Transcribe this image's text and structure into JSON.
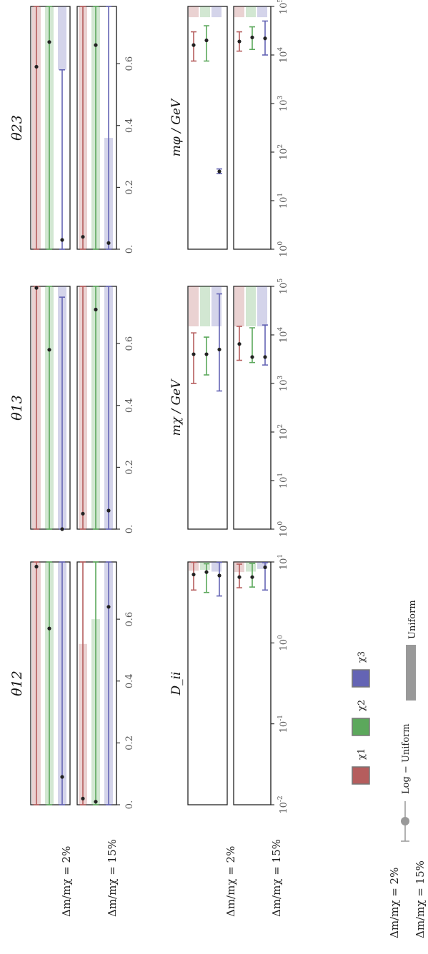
{
  "labels": {
    "row_2pct": "Δm/mχ = 2%",
    "row_15pct": "Δm/mχ = 15%"
  },
  "legend": {
    "entries": [
      {
        "name": "χ1",
        "color": "#b55d5d"
      },
      {
        "name": "χ2",
        "color": "#5ca85c"
      },
      {
        "name": "χ3",
        "color": "#6464b4"
      }
    ],
    "log_uniform_label": "Log − Uniform",
    "uniform_label": "Uniform"
  },
  "colors": {
    "chi1": "#b55d5d",
    "chi2": "#5ca85c",
    "chi3": "#6464b4",
    "point": "#222222"
  },
  "chart_data": [
    {
      "type": "scatter",
      "title": "θ12",
      "xlim": [
        0,
        0.785
      ],
      "x_ticks": [
        "0.",
        "0.2",
        "0.4",
        "0.6"
      ],
      "x_tick_values": [
        0,
        0.2,
        0.4,
        0.6
      ],
      "rows": [
        {
          "label": "Δm/mχ = 2%",
          "series": [
            {
              "name": "χ1",
              "value": 0.77,
              "uniform": [
                0,
                0.785
              ],
              "interval": [
                0,
                0.785
              ]
            },
            {
              "name": "χ2",
              "value": 0.57,
              "uniform": [
                0,
                0.785
              ],
              "interval": [
                0,
                0.785
              ]
            },
            {
              "name": "χ3",
              "value": 0.09,
              "uniform": [
                0,
                0.785
              ],
              "interval": [
                0,
                0.785
              ]
            }
          ]
        },
        {
          "label": "Δm/mχ = 15%",
          "series": [
            {
              "name": "χ1",
              "value": 0.02,
              "uniform": [
                0,
                0.52
              ],
              "interval": [
                0,
                0.785
              ]
            },
            {
              "name": "χ2",
              "value": 0.01,
              "uniform": [
                0,
                0.6
              ],
              "interval": [
                0,
                0.785
              ]
            },
            {
              "name": "χ3",
              "value": 0.64,
              "uniform": [
                0,
                0.785
              ],
              "interval": [
                0,
                0.785
              ]
            }
          ]
        }
      ]
    },
    {
      "type": "scatter",
      "title": "θ13",
      "xlim": [
        0,
        0.785
      ],
      "x_ticks": [
        "0.",
        "0.2",
        "0.4",
        "0.6"
      ],
      "x_tick_values": [
        0,
        0.2,
        0.4,
        0.6
      ],
      "rows": [
        {
          "label": "Δm/mχ = 2%",
          "series": [
            {
              "name": "χ1",
              "value": 0.78,
              "uniform": [
                0,
                0.785
              ],
              "interval": [
                0,
                0.785
              ]
            },
            {
              "name": "χ2",
              "value": 0.58,
              "uniform": [
                0,
                0.785
              ],
              "interval": [
                0,
                0.785
              ]
            },
            {
              "name": "χ3",
              "value": 0.0,
              "uniform": [
                0,
                0.785
              ],
              "interval": [
                0,
                0.75
              ]
            }
          ]
        },
        {
          "label": "Δm/mχ = 15%",
          "series": [
            {
              "name": "χ1",
              "value": 0.05,
              "uniform": [
                0,
                0.785
              ],
              "interval": [
                0,
                0.785
              ]
            },
            {
              "name": "χ2",
              "value": 0.71,
              "uniform": [
                0,
                0.785
              ],
              "interval": [
                0,
                0.785
              ]
            },
            {
              "name": "χ3",
              "value": 0.06,
              "uniform": [
                0,
                0.785
              ],
              "interval": [
                0,
                0.785
              ]
            }
          ]
        }
      ]
    },
    {
      "type": "scatter",
      "title": "θ23",
      "xlim": [
        0,
        0.785
      ],
      "x_ticks": [
        "0.",
        "0.2",
        "0.4",
        "0.6"
      ],
      "x_tick_values": [
        0,
        0.2,
        0.4,
        0.6
      ],
      "rows": [
        {
          "label": "Δm/mχ = 2%",
          "series": [
            {
              "name": "χ1",
              "value": 0.59,
              "uniform": [
                0,
                0.785
              ],
              "interval": [
                0,
                0.785
              ]
            },
            {
              "name": "χ2",
              "value": 0.67,
              "uniform": [
                0,
                0.785
              ],
              "interval": [
                0,
                0.785
              ]
            },
            {
              "name": "χ3",
              "value": 0.03,
              "uniform": [
                0.58,
                0.785
              ],
              "interval": [
                0,
                0.58
              ]
            }
          ]
        },
        {
          "label": "Δm/mχ = 15%",
          "series": [
            {
              "name": "χ1",
              "value": 0.04,
              "uniform": [
                0,
                0.785
              ],
              "interval": [
                0,
                0.785
              ]
            },
            {
              "name": "χ2",
              "value": 0.66,
              "uniform": [
                0,
                0.785
              ],
              "interval": [
                0,
                0.785
              ]
            },
            {
              "name": "χ3",
              "value": 0.02,
              "uniform": [
                0,
                0.36
              ],
              "interval": [
                0,
                0.785
              ]
            }
          ]
        }
      ]
    },
    {
      "type": "scatter",
      "title": "D_ii",
      "xscale": "log",
      "xlim": [
        0.01,
        10
      ],
      "x_ticks": [
        "10^-2",
        "10^-1",
        "10^0",
        "10^1"
      ],
      "x_tick_values": [
        0.01,
        0.1,
        1,
        10
      ],
      "rows": [
        {
          "label": "Δm/mχ = 2%",
          "series": [
            {
              "name": "χ1",
              "value": 7.0,
              "uniform": [
                7.8,
                10
              ],
              "interval": [
                4.5,
                9.9
              ]
            },
            {
              "name": "χ2",
              "value": 7.5,
              "uniform": [
                8.0,
                10
              ],
              "interval": [
                4.2,
                9.5
              ]
            },
            {
              "name": "χ3",
              "value": 6.8,
              "uniform": [
                7.6,
                10
              ],
              "interval": [
                3.8,
                9.9
              ]
            }
          ]
        },
        {
          "label": "Δm/mχ = 15%",
          "series": [
            {
              "name": "χ1",
              "value": 6.5,
              "uniform": [
                7.5,
                10
              ],
              "interval": [
                4.8,
                9.4
              ]
            },
            {
              "name": "χ2",
              "value": 6.5,
              "uniform": [
                7.6,
                10
              ],
              "interval": [
                4.9,
                9.6
              ]
            },
            {
              "name": "χ3",
              "value": 8.6,
              "uniform": [
                8.2,
                10
              ],
              "interval": [
                4.5,
                9.8
              ]
            }
          ]
        }
      ]
    },
    {
      "type": "scatter",
      "title": "mχ / GeV",
      "xscale": "log",
      "xlim": [
        1,
        100000
      ],
      "x_ticks": [
        "10^0",
        "10^1",
        "10^2",
        "10^3",
        "10^4",
        "10^5"
      ],
      "x_tick_values": [
        1,
        10,
        100,
        1000,
        10000,
        100000
      ],
      "rows": [
        {
          "label": "Δm/mχ = 2%",
          "series": [
            {
              "name": "χ1",
              "value": 4000,
              "uniform": [
                15000,
                100000
              ],
              "interval": [
                1000,
                11000
              ]
            },
            {
              "name": "χ2",
              "value": 4000,
              "uniform": [
                15000,
                100000
              ],
              "interval": [
                1500,
                9000
              ]
            },
            {
              "name": "χ3",
              "value": 5000,
              "uniform": [
                15000,
                100000
              ],
              "interval": [
                700,
                70000
              ]
            }
          ]
        },
        {
          "label": "Δm/mχ = 15%",
          "series": [
            {
              "name": "χ1",
              "value": 6500,
              "uniform": [
                15000,
                100000
              ],
              "interval": [
                3000,
                15000
              ]
            },
            {
              "name": "χ2",
              "value": 3500,
              "uniform": [
                15000,
                100000
              ],
              "interval": [
                2700,
                14000
              ]
            },
            {
              "name": "χ3",
              "value": 3500,
              "uniform": [
                15000,
                100000
              ],
              "interval": [
                2400,
                16000
              ]
            }
          ]
        }
      ]
    },
    {
      "type": "scatter",
      "title": "mφ / GeV",
      "xscale": "log",
      "xlim": [
        1,
        100000
      ],
      "x_ticks": [
        "10^0",
        "10^1",
        "10^2",
        "10^3",
        "10^4",
        "10^5"
      ],
      "x_tick_values": [
        1,
        10,
        100,
        1000,
        10000,
        100000
      ],
      "rows": [
        {
          "label": "Δm/mχ = 2%",
          "series": [
            {
              "name": "χ1",
              "value": 16000,
              "uniform": [
                60000,
                100000
              ],
              "interval": [
                7500,
                30000
              ]
            },
            {
              "name": "χ2",
              "value": 20000,
              "uniform": [
                60000,
                100000
              ],
              "interval": [
                7500,
                40000
              ]
            },
            {
              "name": "χ3",
              "value": 40,
              "uniform": [
                60000,
                100000
              ],
              "interval": [
                36,
                45
              ]
            }
          ]
        },
        {
          "label": "Δm/mχ = 15%",
          "series": [
            {
              "name": "χ1",
              "value": 19000,
              "uniform": [
                60000,
                100000
              ],
              "interval": [
                12000,
                30000
              ]
            },
            {
              "name": "χ2",
              "value": 23000,
              "uniform": [
                60000,
                100000
              ],
              "interval": [
                13000,
                38000
              ]
            },
            {
              "name": "χ3",
              "value": 22000,
              "uniform": [
                60000,
                100000
              ],
              "interval": [
                10000,
                50000
              ]
            }
          ]
        }
      ]
    }
  ]
}
